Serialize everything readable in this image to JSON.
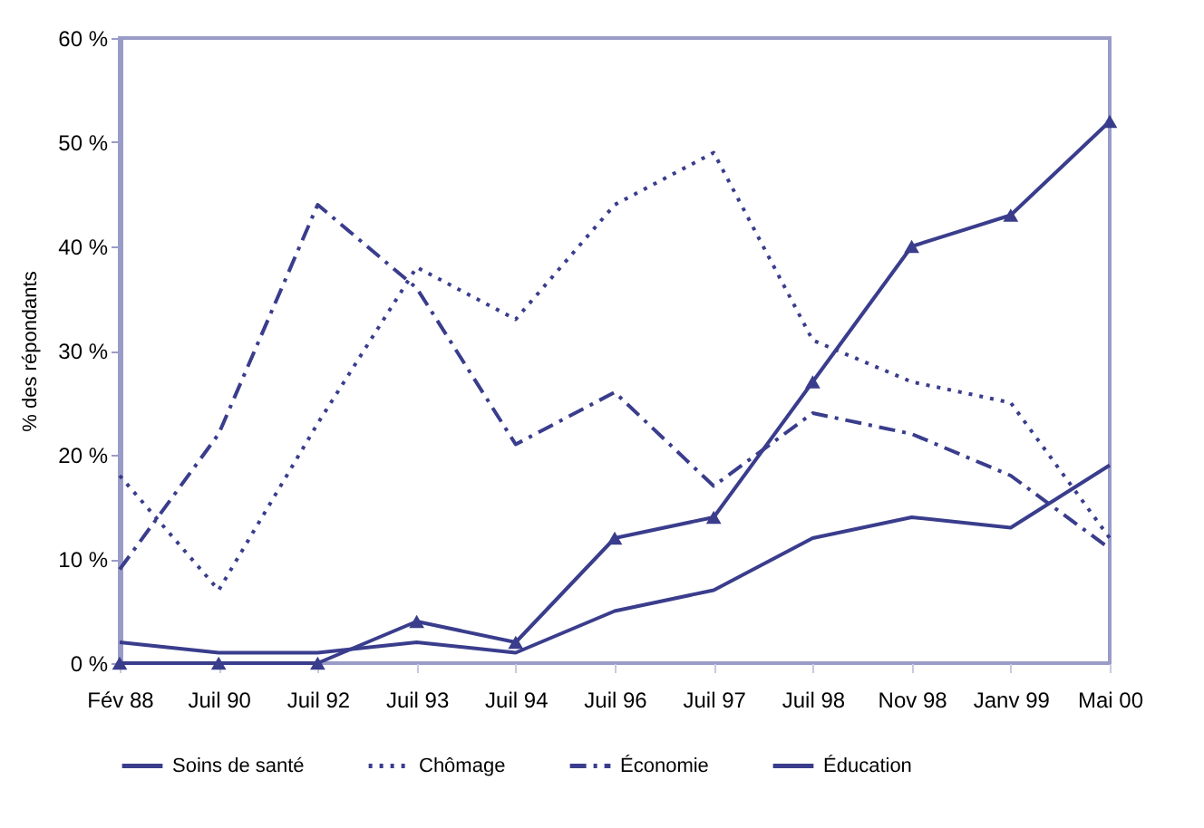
{
  "chart_data": {
    "type": "line",
    "ylabel": "% des répondants",
    "categories": [
      "Fév 88",
      "Juil 90",
      "Juil 92",
      "Juil 93",
      "Juil 94",
      "Juil 96",
      "Juil 97",
      "Juil 98",
      "Nov 98",
      "Janv 99",
      "Mai 00"
    ],
    "series": [
      {
        "name": "Soins de santé",
        "color": "#3a3d8c",
        "marker": "triangle",
        "line_style": "solid",
        "values": [
          0,
          0,
          0,
          4,
          2,
          12,
          14,
          27,
          40,
          43,
          52
        ]
      },
      {
        "name": "Chômage",
        "color": "#3a3d8c",
        "line_style": "dotted",
        "values": [
          18,
          7,
          23,
          38,
          33,
          44,
          49,
          31,
          27,
          25,
          12
        ]
      },
      {
        "name": "Économie",
        "color": "#3a3d8c",
        "line_style": "dashed",
        "values": [
          9,
          22,
          44,
          36,
          21,
          26,
          17,
          24,
          22,
          18,
          11
        ]
      },
      {
        "name": "Éducation",
        "color": "#3a3d8c",
        "line_style": "solid",
        "values": [
          2,
          1,
          1,
          2,
          1,
          5,
          7,
          12,
          14,
          13,
          19
        ]
      }
    ],
    "ylim": [
      0,
      60
    ],
    "yticks": [
      {
        "value": 0,
        "label": "0 %"
      },
      {
        "value": 10,
        "label": "10 %"
      },
      {
        "value": 20,
        "label": "20 %"
      },
      {
        "value": 30,
        "label": "30 %"
      },
      {
        "value": 40,
        "label": "40 %"
      },
      {
        "value": 50,
        "label": "50 %"
      },
      {
        "value": 60,
        "label": "60 %"
      }
    ],
    "legend": "bottom"
  }
}
